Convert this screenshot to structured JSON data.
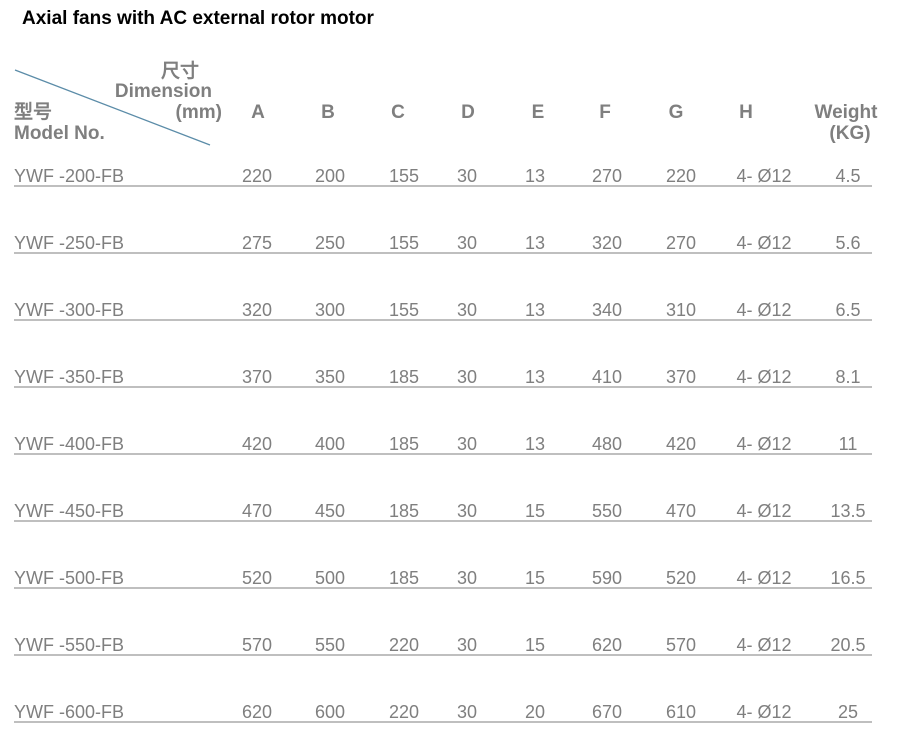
{
  "title": "Axial fans with AC external rotor motor",
  "header": {
    "dimension_cn": "尺寸",
    "dimension": "Dimension",
    "unit": "(mm)",
    "model_cn": "型号",
    "model": "Model No.",
    "columns": [
      "A",
      "B",
      "C",
      "D",
      "E",
      "F",
      "G",
      "H"
    ],
    "weight": "Weight",
    "weight_unit": "(KG)"
  },
  "table": {
    "rows": [
      [
        "YWF -200-FB",
        220,
        200,
        155,
        30,
        13,
        270,
        220,
        "4- Ø12",
        4.5
      ],
      [
        "YWF -250-FB",
        275,
        250,
        155,
        30,
        13,
        320,
        270,
        "4- Ø12",
        5.6
      ],
      [
        "YWF -300-FB",
        320,
        300,
        155,
        30,
        13,
        340,
        310,
        "4- Ø12",
        6.5
      ],
      [
        "YWF -350-FB",
        370,
        350,
        185,
        30,
        13,
        410,
        370,
        "4- Ø12",
        8.1
      ],
      [
        "YWF -400-FB",
        420,
        400,
        185,
        30,
        13,
        480,
        420,
        "4- Ø12",
        11
      ],
      [
        "YWF -450-FB",
        470,
        450,
        185,
        30,
        15,
        550,
        470,
        "4- Ø12",
        13.5
      ],
      [
        "YWF -500-FB",
        520,
        500,
        185,
        30,
        15,
        590,
        520,
        "4- Ø12",
        16.5
      ],
      [
        "YWF -550-FB",
        570,
        550,
        220,
        30,
        15,
        620,
        570,
        "4- Ø12",
        20.5
      ],
      [
        "YWF -600-FB",
        620,
        600,
        220,
        30,
        20,
        670,
        610,
        "4- Ø12",
        25
      ]
    ]
  }
}
